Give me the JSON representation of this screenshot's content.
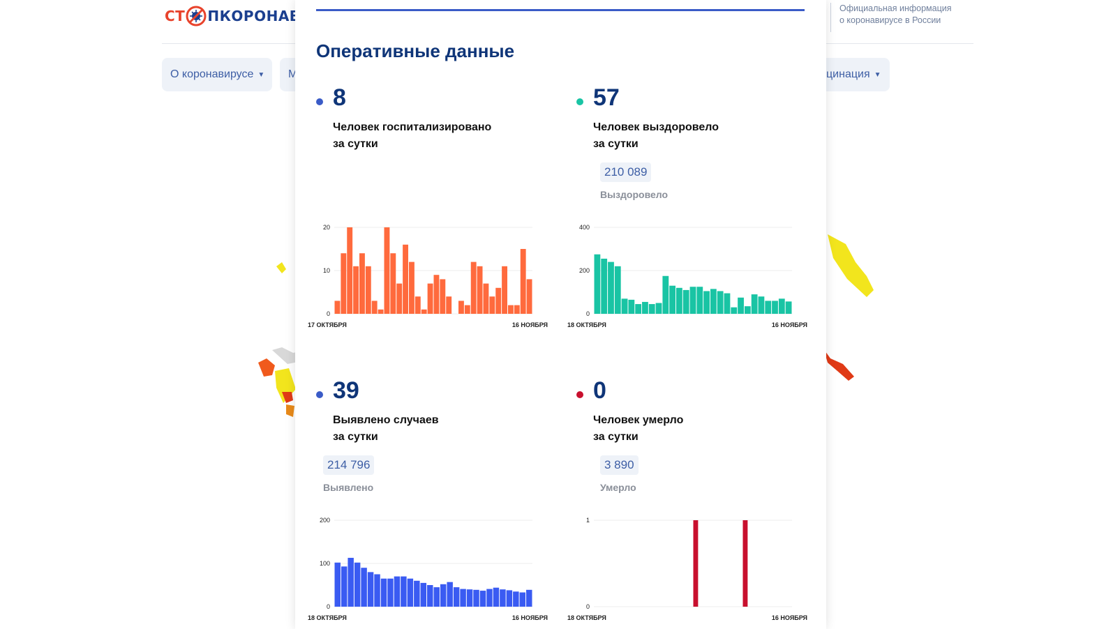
{
  "header": {
    "logo": {
      "part1": "СТ",
      "part2": "ПКОРОНАВИ"
    },
    "official_line1": "Официальная информация",
    "official_line2": "о коронавирусе в России"
  },
  "nav": {
    "about": "О коронавирусе",
    "second": "М",
    "vaccination": "цинация"
  },
  "panel": {
    "title": "Оперативные данные",
    "cards": [
      {
        "value": "8",
        "label_line1": "Человек госпитализировано",
        "label_line2": "за сутки",
        "color": "#3a5bc7"
      },
      {
        "value": "57",
        "label_line1": "Человек выздоровело",
        "label_line2": "за сутки",
        "total": "210 089",
        "total_label": "Выздоровело",
        "color": "#19c4a4"
      },
      {
        "value": "39",
        "label_line1": "Выявлено случаев",
        "label_line2": "за сутки",
        "total": "214 796",
        "total_label": "Выявлено",
        "color": "#3a5bc7"
      },
      {
        "value": "0",
        "label_line1": "Человек умерло",
        "label_line2": "за сутки",
        "total": "3 890",
        "total_label": "Умерло",
        "color": "#c8102e"
      }
    ]
  },
  "chart_data": [
    {
      "type": "bar",
      "color": "#ff6a3d",
      "ylim": [
        0,
        20
      ],
      "yticks": [
        0,
        10,
        20
      ],
      "x_start_label": "17 ОКТЯБРЯ",
      "x_end_label": "16 НОЯБРЯ",
      "values": [
        3,
        14,
        20,
        11,
        14,
        11,
        3,
        1,
        20,
        14,
        7,
        16,
        12,
        4,
        1,
        7,
        9,
        8,
        4,
        0,
        3,
        2,
        12,
        11,
        7,
        4,
        6,
        11,
        2,
        2,
        15,
        8
      ]
    },
    {
      "type": "bar",
      "color": "#19c4a4",
      "ylim": [
        0,
        400
      ],
      "yticks": [
        0,
        200,
        400
      ],
      "x_start_label": "18 ОКТЯБРЯ",
      "x_end_label": "16 НОЯБРЯ",
      "values": [
        275,
        255,
        240,
        220,
        70,
        65,
        45,
        55,
        45,
        50,
        175,
        130,
        120,
        110,
        125,
        125,
        105,
        115,
        105,
        95,
        30,
        75,
        35,
        90,
        80,
        60,
        60,
        70,
        57
      ]
    },
    {
      "type": "bar",
      "color": "#3a5bf2",
      "ylim": [
        0,
        200
      ],
      "yticks": [
        0,
        100,
        200
      ],
      "x_start_label": "18 ОКТЯБРЯ",
      "x_end_label": "16 НОЯБРЯ",
      "values": [
        102,
        93,
        113,
        102,
        90,
        80,
        75,
        65,
        65,
        70,
        70,
        65,
        60,
        55,
        50,
        45,
        52,
        57,
        45,
        41,
        40,
        39,
        37,
        41,
        44,
        40,
        38,
        35,
        33,
        39
      ]
    },
    {
      "type": "bar",
      "color": "#c8102e",
      "ylim": [
        0,
        1
      ],
      "yticks": [
        0,
        1
      ],
      "x_start_label": "18 ОКТЯБРЯ",
      "x_end_label": "16 НОЯБРЯ",
      "values": [
        0,
        0,
        0,
        0,
        0,
        0,
        0,
        0,
        0,
        0,
        0,
        0,
        0,
        0,
        0,
        0,
        0,
        0,
        1,
        0,
        0,
        0,
        0,
        0,
        0,
        0,
        0,
        1,
        0,
        0,
        0,
        0,
        0,
        0,
        0,
        0
      ]
    }
  ]
}
